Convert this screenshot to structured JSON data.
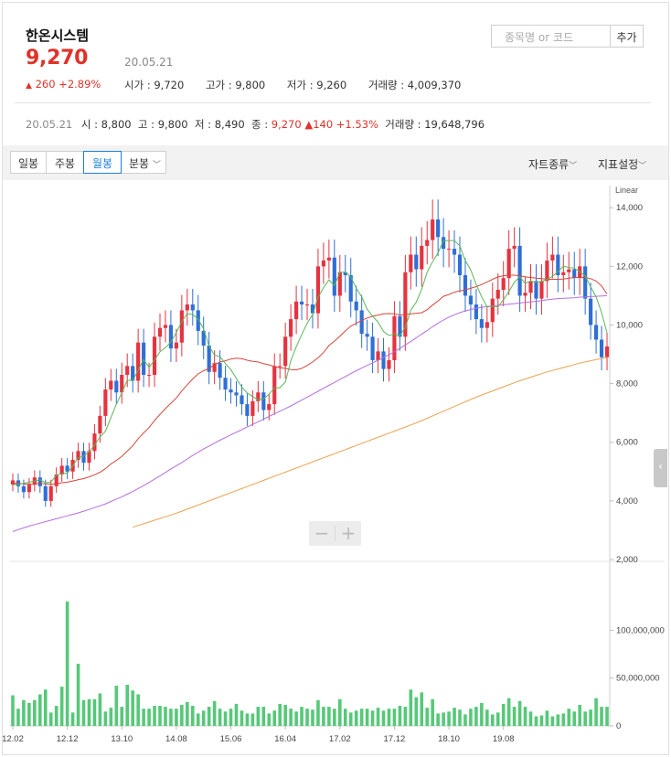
{
  "stock": {
    "name": "한온시스템",
    "price": "9,270",
    "change_arrow": "▲",
    "change_text": "260 +2.89%",
    "date": "20.05.21"
  },
  "quote": [
    {
      "label": "시가",
      "value": "9,720"
    },
    {
      "label": "고가",
      "value": "9,800"
    },
    {
      "label": "저가",
      "value": "9,260"
    },
    {
      "label": "거래량",
      "value": "4,009,370"
    }
  ],
  "search": {
    "placeholder": "종목명 or 코드",
    "add_label": "추가"
  },
  "previous": {
    "date": "20.05.21",
    "open_label": "시",
    "open": "8,800",
    "high_label": "고",
    "high": "9,800",
    "low_label": "저",
    "low": "8,490",
    "close_label": "종",
    "close": "9,270",
    "change": "▲140 +1.53%",
    "volume_label": "거래량",
    "volume": "19,648,796"
  },
  "toolbar": {
    "tabs": [
      "일봉",
      "주봉",
      "월봉"
    ],
    "active_tab": "월봉",
    "minute_label": "분봉",
    "chart_type_label": "자트종류",
    "indicator_label": "지표설정"
  },
  "chart_controls": {
    "zoom_out": "−",
    "zoom_in": "+",
    "side_toggle": "‹"
  },
  "chart_data": {
    "type": "candlestick",
    "scale_label": "Linear",
    "price_ticks": [
      2000,
      4000,
      6000,
      8000,
      10000,
      12000,
      14000
    ],
    "price_tick_labels": [
      "2,000",
      "4,000",
      "6,000",
      "8,000",
      "10,000",
      "12,000",
      "14,000"
    ],
    "price_range": [
      2000,
      14600
    ],
    "volume_ticks": [
      0,
      50000000,
      100000000
    ],
    "volume_tick_labels": [
      "0",
      "50,000,000",
      "100,000,000"
    ],
    "volume_range": [
      0,
      150000000
    ],
    "x_tick_labels": [
      "12.02",
      "12.12",
      "13.10",
      "14.08",
      "15.06",
      "16.04",
      "17.02",
      "17.12",
      "18.10",
      "19.08"
    ],
    "x_tick_index": [
      0,
      10,
      20,
      30,
      40,
      50,
      60,
      70,
      80,
      90
    ],
    "colors": {
      "up": "#e5333f",
      "down": "#2f6fd6",
      "volume": "#56c878",
      "ma5": "#57b957",
      "ma20": "#d9453a",
      "ma60": "#b46ee0",
      "ma120": "#eba24f"
    },
    "close": [
      4700,
      4500,
      4300,
      4550,
      4800,
      4500,
      4000,
      4500,
      4900,
      5200,
      5000,
      5400,
      5700,
      5300,
      5700,
      6300,
      6900,
      7800,
      8100,
      7700,
      8300,
      8600,
      8100,
      9400,
      8300,
      8300,
      9600,
      9900,
      10000,
      9200,
      9400,
      10500,
      10700,
      10500,
      9800,
      9300,
      8400,
      8700,
      8200,
      7800,
      7700,
      7600,
      7300,
      6900,
      7400,
      7700,
      7100,
      7300,
      8600,
      8600,
      9600,
      10200,
      10800,
      10700,
      10700,
      10400,
      12000,
      12200,
      12300,
      11000,
      11800,
      11700,
      10800,
      10500,
      9700,
      9600,
      8800,
      9100,
      8500,
      8800,
      10300,
      9600,
      11800,
      12400,
      11900,
      12700,
      12900,
      13600,
      13000,
      12600,
      12600,
      12400,
      11700,
      11000,
      10700,
      10200,
      9900,
      10100,
      10900,
      11200,
      11600,
      12600,
      12700,
      11000,
      11100,
      11500,
      10900,
      11500,
      12200,
      12400,
      11700,
      11800,
      11900,
      11600,
      12000,
      10900,
      10000,
      9500,
      8900,
      9270
    ],
    "ma5": [
      4550,
      4560,
      4600,
      4640,
      4680,
      4720,
      4620,
      4640,
      4880,
      4930,
      4950,
      5200,
      5470,
      5520,
      5680,
      5900,
      6180,
      6380,
      6840,
      7300,
      7690,
      8120,
      8100,
      8460,
      8820,
      8560,
      8800,
      9090,
      9230,
      9420,
      9740,
      10120,
      10390,
      10360,
      10200,
      9870,
      9280,
      8970,
      8920,
      8680,
      8480,
      8180,
      7880,
      7680,
      7560,
      7440,
      7480,
      7640,
      7860,
      7860,
      8060,
      8780,
      9260,
      9680,
      10060,
      10360,
      10940,
      11280,
      11540,
      11340,
      11800,
      11800,
      11640,
      11260,
      10960,
      10540,
      10300,
      10100,
      9780,
      9640,
      9700,
      9640,
      9920,
      10500,
      10780,
      11220,
      11800,
      12160,
      12460,
      12880,
      12880,
      12880,
      12700,
      12200,
      11880,
      11380,
      10960,
      10620,
      10640,
      10620,
      10860,
      11140,
      11460,
      11640,
      11420,
      11500,
      11450,
      11480,
      11560,
      11660,
      11820,
      12010,
      11960,
      11940,
      11820,
      11680,
      11300,
      10960,
      10420,
      9730
    ],
    "ma20": [
      4600,
      4600,
      4580,
      4570,
      4580,
      4600,
      4580,
      4570,
      4590,
      4620,
      4640,
      4680,
      4720,
      4760,
      4820,
      4890,
      4980,
      5100,
      5260,
      5380,
      5520,
      5700,
      5880,
      6120,
      6320,
      6500,
      6740,
      6950,
      7150,
      7330,
      7510,
      7750,
      7960,
      8160,
      8330,
      8440,
      8520,
      8640,
      8740,
      8780,
      8840,
      8870,
      8850,
      8800,
      8760,
      8740,
      8680,
      8640,
      8580,
      8540,
      8520,
      8480,
      8470,
      8520,
      8620,
      8740,
      8880,
      9060,
      9300,
      9450,
      9620,
      9800,
      9960,
      10060,
      10160,
      10240,
      10300,
      10340,
      10380,
      10390,
      10380,
      10340,
      10350,
      10380,
      10400,
      10420,
      10520,
      10680,
      10820,
      10980,
      11040,
      11120,
      11160,
      11200,
      11250,
      11310,
      11380,
      11470,
      11560,
      11640,
      11680,
      11700,
      11700,
      11680,
      11640,
      11620,
      11600,
      11580,
      11560,
      11560,
      11560,
      11570,
      11600,
      11620,
      11620,
      11620,
      11580,
      11500,
      11330,
      11060
    ],
    "ma60": [
      2950,
      3020,
      3080,
      3140,
      3190,
      3240,
      3290,
      3340,
      3390,
      3440,
      3490,
      3540,
      3590,
      3650,
      3710,
      3770,
      3830,
      3900,
      3980,
      4060,
      4140,
      4230,
      4320,
      4420,
      4520,
      4630,
      4740,
      4850,
      4970,
      5090,
      5200,
      5310,
      5430,
      5550,
      5660,
      5770,
      5870,
      5970,
      6070,
      6160,
      6250,
      6340,
      6430,
      6520,
      6610,
      6700,
      6790,
      6880,
      6970,
      7060,
      7150,
      7240,
      7340,
      7440,
      7540,
      7640,
      7740,
      7840,
      7940,
      8040,
      8140,
      8240,
      8340,
      8440,
      8530,
      8620,
      8710,
      8800,
      8890,
      8990,
      9090,
      9200,
      9320,
      9440,
      9560,
      9690,
      9810,
      9940,
      10060,
      10170,
      10270,
      10350,
      10420,
      10480,
      10530,
      10570,
      10600,
      10630,
      10650,
      10670,
      10690,
      10710,
      10730,
      10750,
      10770,
      10790,
      10810,
      10830,
      10860,
      10880,
      10900,
      10910,
      10920,
      10930,
      10950,
      10960,
      10970,
      10980,
      10990,
      11000
    ],
    "ma120": [
      null,
      null,
      null,
      null,
      null,
      null,
      null,
      null,
      null,
      null,
      null,
      null,
      null,
      null,
      null,
      null,
      null,
      null,
      null,
      null,
      null,
      null,
      3100,
      3160,
      3220,
      3280,
      3340,
      3400,
      3460,
      3520,
      3580,
      3650,
      3720,
      3790,
      3860,
      3930,
      4000,
      4070,
      4140,
      4210,
      4280,
      4350,
      4420,
      4490,
      4560,
      4630,
      4700,
      4770,
      4840,
      4910,
      4980,
      5050,
      5120,
      5190,
      5260,
      5330,
      5400,
      5470,
      5540,
      5610,
      5680,
      5750,
      5820,
      5890,
      5960,
      6030,
      6100,
      6170,
      6240,
      6310,
      6380,
      6450,
      6520,
      6590,
      6660,
      6740,
      6820,
      6900,
      6980,
      7060,
      7140,
      7220,
      7300,
      7380,
      7460,
      7540,
      7610,
      7680,
      7750,
      7820,
      7890,
      7960,
      8030,
      8100,
      8160,
      8220,
      8280,
      8340,
      8400,
      8450,
      8500,
      8550,
      8600,
      8650,
      8700,
      8740,
      8780,
      8820,
      8860,
      8900
    ],
    "volume": [
      32000000,
      18000000,
      27000000,
      24000000,
      27000000,
      33000000,
      38000000,
      14000000,
      21000000,
      41000000,
      130000000,
      14000000,
      65000000,
      27000000,
      28000000,
      28000000,
      34000000,
      15000000,
      19000000,
      42000000,
      20000000,
      43000000,
      37000000,
      33000000,
      18000000,
      18000000,
      21000000,
      21000000,
      20000000,
      18000000,
      18000000,
      22000000,
      25000000,
      21000000,
      13000000,
      16000000,
      20000000,
      26000000,
      18000000,
      15000000,
      18000000,
      23000000,
      16000000,
      13000000,
      13000000,
      20000000,
      20000000,
      13000000,
      16000000,
      23000000,
      22000000,
      18000000,
      15000000,
      20000000,
      18000000,
      17000000,
      27000000,
      20000000,
      20000000,
      18000000,
      28000000,
      18000000,
      14000000,
      16000000,
      18000000,
      18000000,
      16000000,
      19000000,
      16000000,
      18000000,
      18000000,
      21000000,
      20000000,
      38000000,
      30000000,
      35000000,
      19000000,
      28000000,
      13000000,
      14000000,
      15000000,
      19000000,
      17000000,
      12000000,
      18000000,
      20000000,
      24000000,
      17000000,
      12000000,
      14000000,
      23000000,
      29000000,
      20000000,
      26000000,
      20000000,
      15000000,
      10000000,
      11000000,
      16000000,
      10000000,
      12000000,
      13000000,
      18000000,
      15000000,
      22000000,
      15000000,
      17000000,
      29000000,
      20000000,
      20000000
    ]
  }
}
